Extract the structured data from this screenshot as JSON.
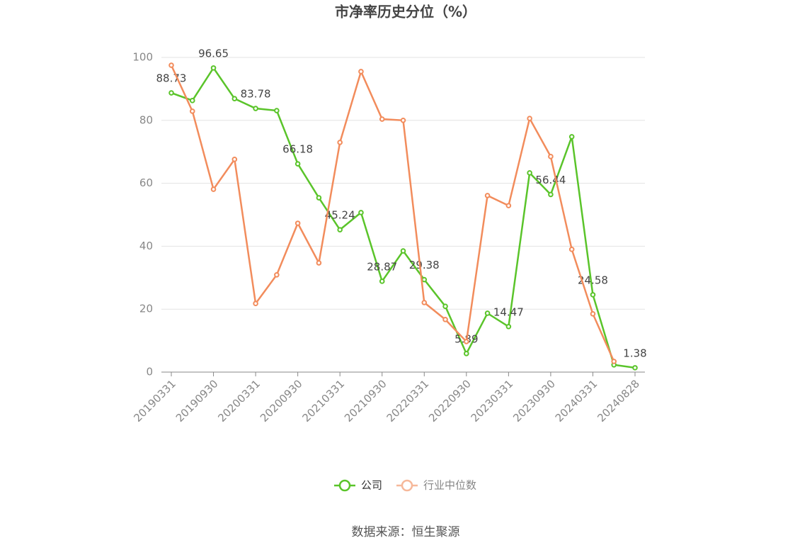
{
  "chart_data": {
    "type": "line",
    "title": "市净率历史分位（%）",
    "source": "数据来源：恒生聚源",
    "categories": [
      "20190331",
      null,
      "20190930",
      null,
      "20200331",
      null,
      "20200930",
      null,
      "20210331",
      null,
      "20210930",
      null,
      "20220331",
      null,
      "20220930",
      null,
      "20230331",
      null,
      "20230930",
      null,
      "20240331",
      null,
      "20240828"
    ],
    "series": [
      {
        "name": "公司",
        "color": "#5ac42a",
        "values": [
          88.73,
          86.3,
          96.65,
          86.9,
          83.78,
          83.1,
          66.18,
          55.4,
          45.24,
          50.7,
          28.87,
          38.5,
          29.38,
          20.9,
          5.89,
          18.7,
          14.47,
          63.3,
          56.44,
          74.8,
          24.58,
          2.3,
          1.38
        ]
      },
      {
        "name": "行业中位数",
        "color": "#f28c5c",
        "values": [
          97.5,
          82.9,
          58.1,
          67.6,
          21.8,
          30.9,
          47.3,
          34.7,
          73.0,
          95.5,
          80.4,
          80.0,
          22.1,
          16.7,
          9.7,
          56.1,
          52.9,
          80.6,
          68.5,
          39.0,
          18.5,
          3.4,
          null
        ]
      }
    ],
    "ylim": [
      0,
      100
    ],
    "yticks": [
      0,
      20,
      40,
      60,
      80,
      100
    ],
    "grid": true,
    "legend": "bottom"
  }
}
